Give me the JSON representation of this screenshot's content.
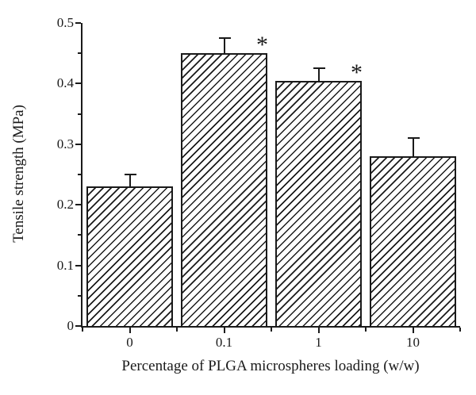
{
  "figure": {
    "background": "#ffffff",
    "ink_color": "#1a1a1a"
  },
  "chart_data": {
    "type": "bar",
    "title": "",
    "xlabel": "Percentage of PLGA microspheres loading (w/w)",
    "ylabel": "Tensile strength (MPa)",
    "categories": [
      "0",
      "0.1",
      "1",
      "10"
    ],
    "values": [
      0.23,
      0.45,
      0.405,
      0.28
    ],
    "errors_plus": [
      0.02,
      0.025,
      0.02,
      0.03
    ],
    "significance_markers": [
      "",
      "*",
      "*",
      ""
    ],
    "ylim": [
      0,
      0.5
    ],
    "y_major_ticks": [
      0,
      0.1,
      0.2,
      0.3,
      0.4,
      0.5
    ],
    "y_tick_labels": [
      "0",
      "0.1",
      "0.2",
      "0.3",
      "0.4",
      "0.5"
    ],
    "y_minor_ticks": [
      0.05,
      0.15,
      0.25,
      0.35,
      0.45
    ],
    "grid": false,
    "legend": null,
    "bar_style": {
      "fill": "diagonal-hatch",
      "hatch_direction": "/",
      "edge_color": "#1a1a1a",
      "hatch_color": "#1a1a1a"
    }
  }
}
